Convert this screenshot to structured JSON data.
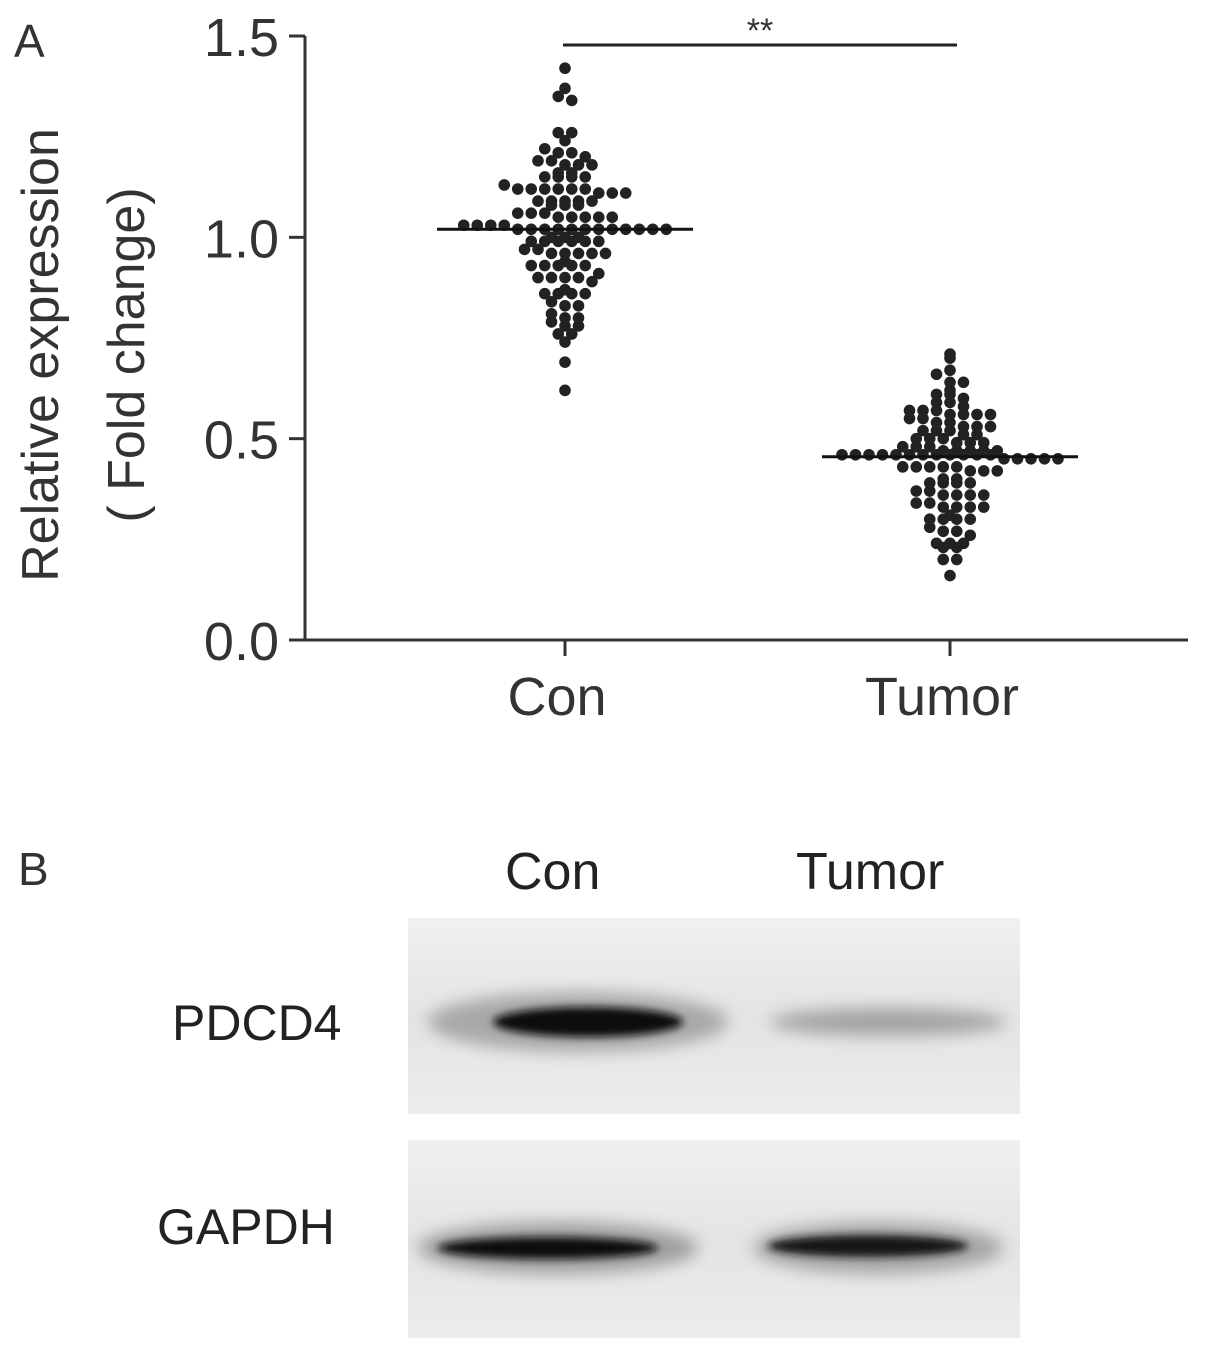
{
  "panel_a": {
    "letter": "A",
    "significance": "**"
  },
  "panel_b": {
    "letter": "B",
    "lanes": [
      "Con",
      "Tumor"
    ],
    "rows": [
      {
        "label": "PDCD4",
        "band_intensity": [
          1.0,
          0.35
        ]
      },
      {
        "label": "GAPDH",
        "band_intensity": [
          1.0,
          0.95
        ]
      }
    ]
  },
  "colors": {
    "points": "#222222",
    "axis": "#333333",
    "text": "#333333"
  },
  "chart_data": {
    "type": "scatter",
    "ylabel_line1": "Relative expression",
    "ylabel_line2": "( Fold change)",
    "categories": [
      "Con",
      "Tumor"
    ],
    "ylim": [
      0,
      1.5
    ],
    "yticks": [
      "0.0",
      "0.5",
      "1.0",
      "1.5"
    ],
    "yticks_values": [
      0,
      0.5,
      1.0,
      1.5
    ],
    "means": [
      1.02,
      0.455
    ],
    "series": [
      {
        "values": [
          1.42,
          1.37,
          1.35,
          1.34,
          1.26,
          1.26,
          1.24,
          1.22,
          1.21,
          1.21,
          1.2,
          1.19,
          1.19,
          1.18,
          1.18,
          1.18,
          1.16,
          1.16,
          1.15,
          1.15,
          1.15,
          1.15,
          1.13,
          1.12,
          1.12,
          1.12,
          1.12,
          1.12,
          1.12,
          1.11,
          1.11,
          1.11,
          1.09,
          1.09,
          1.09,
          1.09,
          1.09,
          1.08,
          1.08,
          1.08,
          1.06,
          1.06,
          1.06,
          1.05,
          1.05,
          1.05,
          1.05,
          1.05,
          1.03,
          1.03,
          1.03,
          1.03,
          1.02,
          1.02,
          1.02,
          1.02,
          1.02,
          1.02,
          1.02,
          1.02,
          1.02,
          1.02,
          1.02,
          1.02,
          1.0,
          1.0,
          1.0,
          0.99,
          0.99,
          0.99,
          0.99,
          0.99,
          0.99,
          0.97,
          0.97,
          0.96,
          0.96,
          0.96,
          0.96,
          0.96,
          0.94,
          0.93,
          0.93,
          0.93,
          0.93,
          0.93,
          0.91,
          0.9,
          0.9,
          0.9,
          0.9,
          0.89,
          0.87,
          0.86,
          0.86,
          0.86,
          0.86,
          0.84,
          0.83,
          0.83,
          0.81,
          0.8,
          0.8,
          0.79,
          0.78,
          0.78,
          0.76,
          0.76,
          0.74,
          0.69,
          0.62
        ]
      },
      {
        "values": [
          0.71,
          0.7,
          0.67,
          0.66,
          0.64,
          0.64,
          0.62,
          0.61,
          0.61,
          0.6,
          0.59,
          0.59,
          0.58,
          0.57,
          0.57,
          0.57,
          0.56,
          0.56,
          0.56,
          0.56,
          0.55,
          0.55,
          0.54,
          0.54,
          0.53,
          0.53,
          0.53,
          0.52,
          0.52,
          0.52,
          0.51,
          0.51,
          0.5,
          0.5,
          0.5,
          0.49,
          0.49,
          0.49,
          0.48,
          0.48,
          0.48,
          0.47,
          0.47,
          0.47,
          0.47,
          0.47,
          0.46,
          0.46,
          0.46,
          0.46,
          0.46,
          0.46,
          0.46,
          0.46,
          0.46,
          0.46,
          0.46,
          0.46,
          0.45,
          0.45,
          0.45,
          0.45,
          0.45,
          0.43,
          0.43,
          0.43,
          0.43,
          0.43,
          0.42,
          0.42,
          0.42,
          0.4,
          0.4,
          0.39,
          0.39,
          0.39,
          0.39,
          0.37,
          0.37,
          0.36,
          0.36,
          0.36,
          0.36,
          0.34,
          0.34,
          0.33,
          0.33,
          0.33,
          0.33,
          0.31,
          0.3,
          0.3,
          0.3,
          0.3,
          0.28,
          0.27,
          0.27,
          0.26,
          0.24,
          0.24,
          0.24,
          0.23,
          0.23,
          0.2,
          0.2,
          0.16
        ]
      }
    ]
  }
}
